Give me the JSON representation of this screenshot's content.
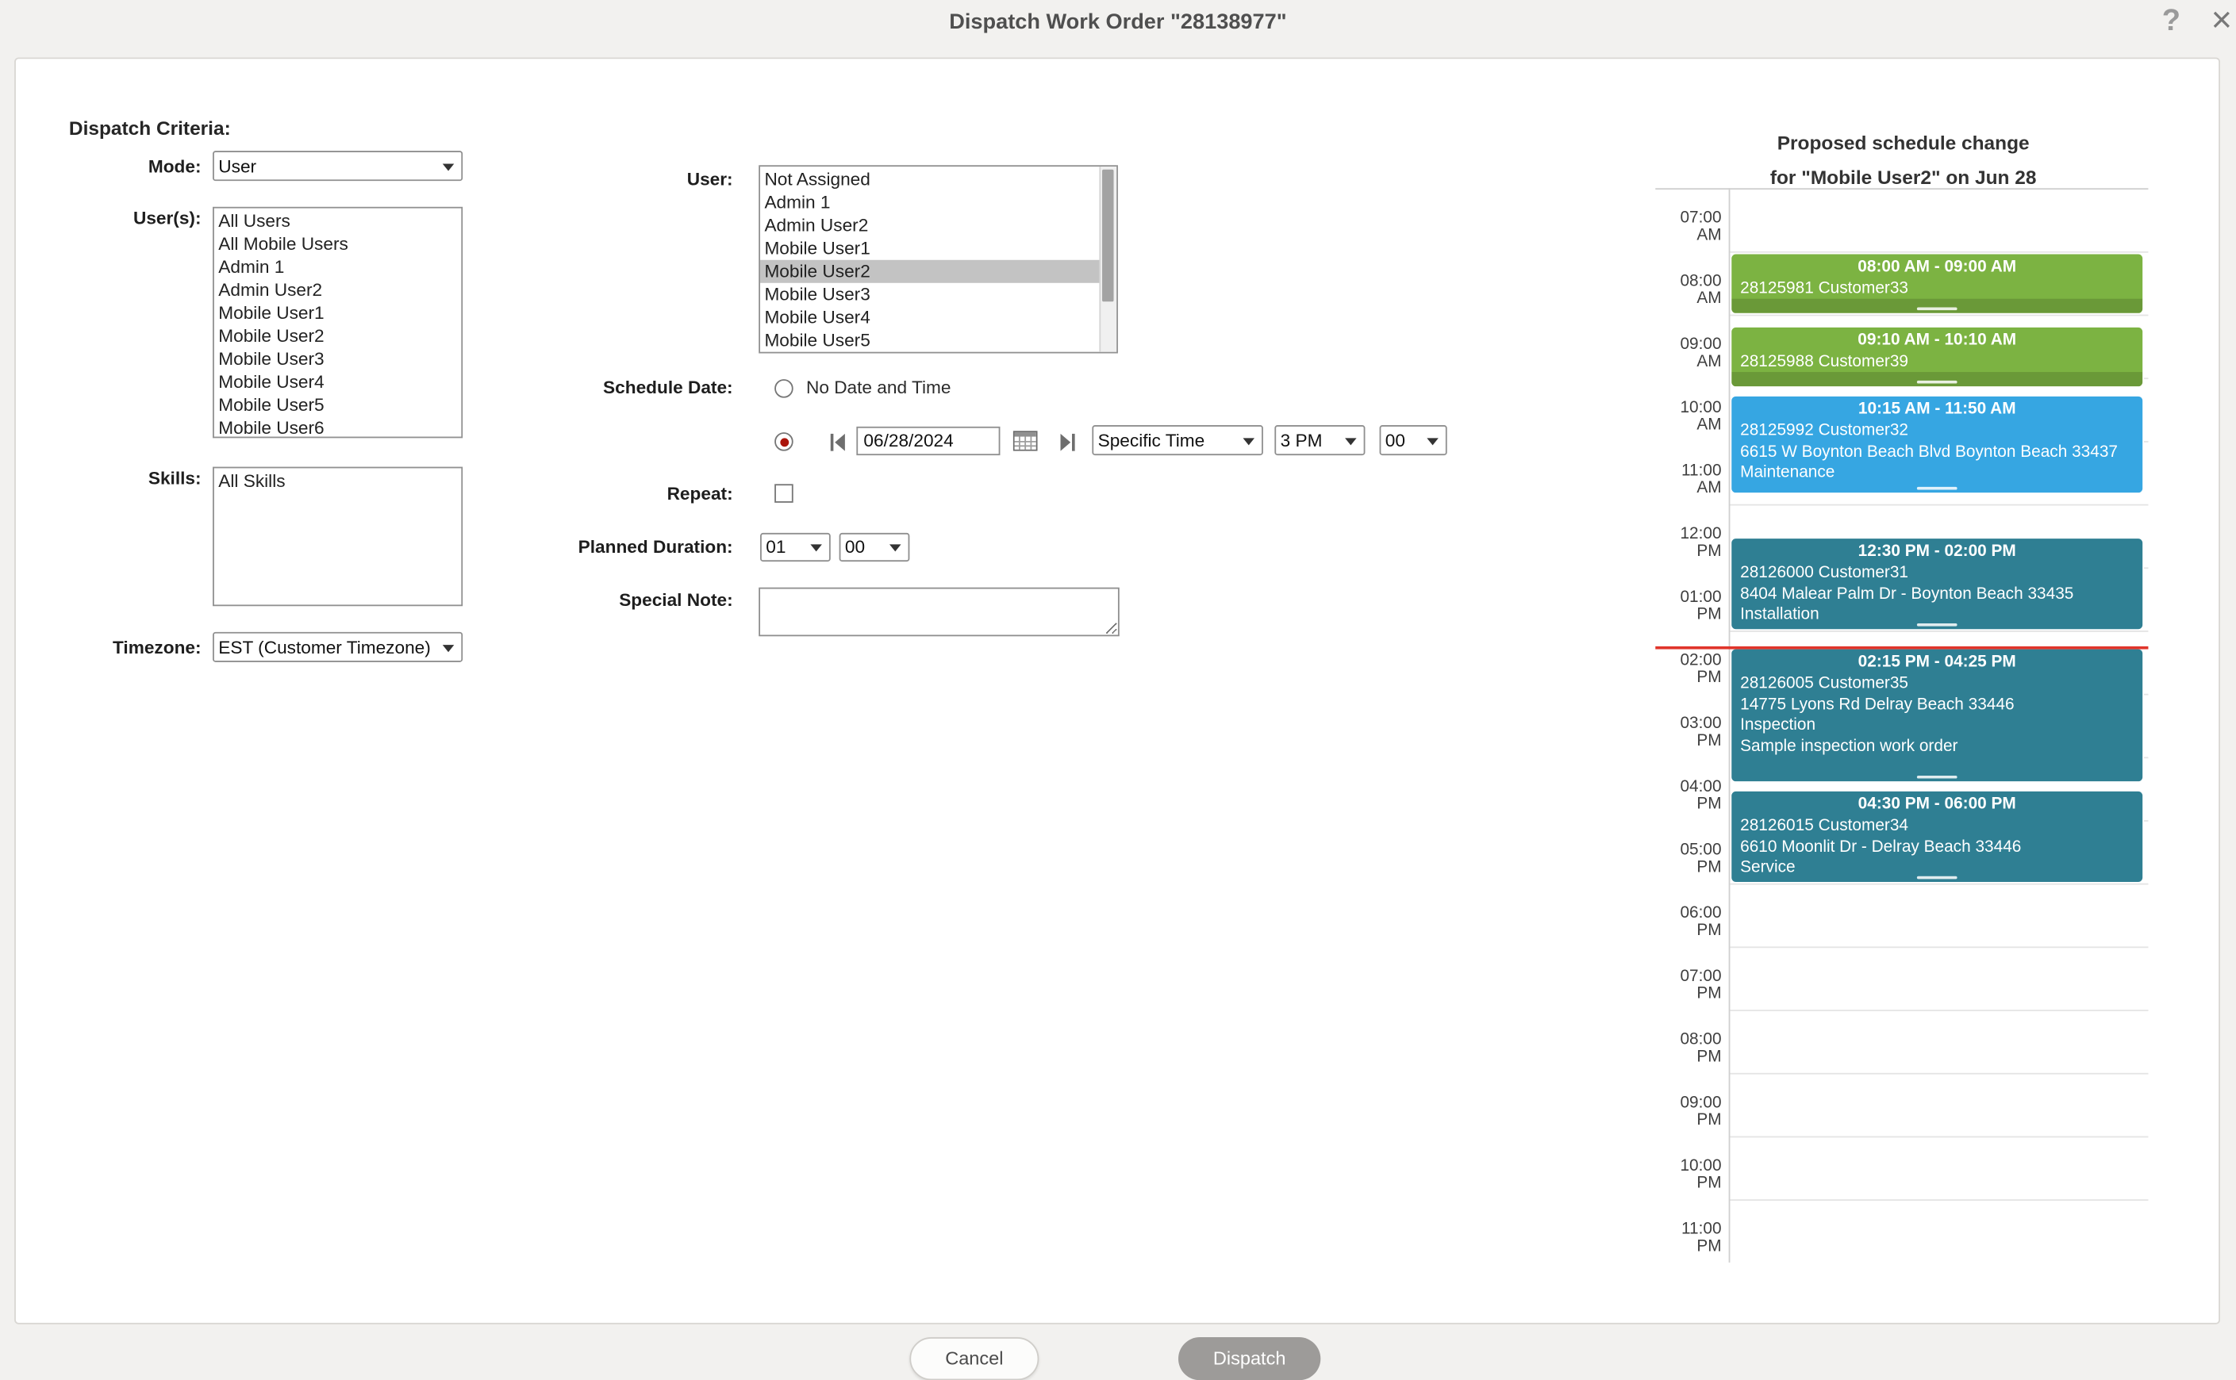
{
  "dialog": {
    "title": "Dispatch Work Order  \"28138977\"",
    "icons": {
      "help": "?",
      "close": "×"
    }
  },
  "criteria": {
    "heading": "Dispatch Criteria:",
    "mode": {
      "label": "Mode:",
      "value": "User"
    },
    "users": {
      "label": "User(s):",
      "items": [
        "All Users",
        "All Mobile Users",
        "Admin 1",
        "Admin User2",
        "Mobile User1",
        "Mobile User2",
        "Mobile User3",
        "Mobile User4",
        "Mobile User5",
        "Mobile User6"
      ]
    },
    "skills": {
      "label": "Skills:",
      "items": [
        "All Skills"
      ]
    },
    "timezone": {
      "label": "Timezone:",
      "value": "EST (Customer Timezone)"
    }
  },
  "assignment": {
    "user_label": "User:",
    "user_options": [
      "Not Assigned",
      "Admin 1",
      "Admin User2",
      "Mobile User1",
      "Mobile User2",
      "Mobile User3",
      "Mobile User4",
      "Mobile User5"
    ],
    "selected_user": "Mobile User2",
    "schedule_date": {
      "label": "Schedule Date:",
      "no_date_label": "No Date and Time",
      "date_value": "06/28/2024",
      "time_mode": "Specific Time",
      "hour": "3 PM",
      "minute": "00"
    },
    "repeat_label": "Repeat:",
    "planned_duration": {
      "label": "Planned Duration:",
      "hours": "01",
      "minutes": "00"
    },
    "special_note_label": "Special Note:"
  },
  "schedule": {
    "heading_line1": "Proposed schedule change",
    "heading_line2": "for \"Mobile User2\" on Jun 28",
    "time_labels": [
      "07:00 AM",
      "08:00 AM",
      "09:00 AM",
      "10:00 AM",
      "11:00 AM",
      "12:00 PM",
      "01:00 PM",
      "02:00 PM",
      "03:00 PM",
      "04:00 PM",
      "05:00 PM",
      "06:00 PM",
      "07:00 PM",
      "08:00 PM",
      "09:00 PM",
      "10:00 PM",
      "11:00 PM"
    ],
    "colors": {
      "green": "#7cb342",
      "blue": "#36a6e2",
      "teal": "#2f7f93",
      "current_line": "#e0352b"
    },
    "current_time": 14.25,
    "events": [
      {
        "time": "08:00 AM - 09:00 AM",
        "start": 8,
        "end": 9,
        "color": "green",
        "clipped": true,
        "lines": [
          "28125981 Customer33"
        ]
      },
      {
        "time": "09:10 AM - 10:10 AM",
        "start": 9.1667,
        "end": 10.1667,
        "color": "green",
        "clipped": true,
        "lines": [
          "28125988 Customer39"
        ]
      },
      {
        "time": "10:15 AM - 11:50 AM",
        "start": 10.25,
        "end": 11.8333,
        "color": "blue",
        "lines": [
          "28125992 Customer32",
          "6615 W Boynton Beach Blvd Boynton Beach 33437",
          "Maintenance"
        ]
      },
      {
        "time": "12:30 PM - 02:00 PM",
        "start": 12.5,
        "end": 14,
        "color": "teal",
        "lines": [
          "28126000 Customer31",
          "8404 Malear Palm Dr - Boynton Beach 33435",
          "Installation"
        ]
      },
      {
        "time": "02:15 PM - 04:25 PM",
        "start": 14.25,
        "end": 16.4167,
        "color": "teal",
        "lines": [
          "28126005 Customer35",
          "14775 Lyons Rd Delray Beach 33446",
          "Inspection",
          "Sample inspection work order"
        ]
      },
      {
        "time": "04:30 PM - 06:00 PM",
        "start": 16.5,
        "end": 18,
        "color": "teal",
        "lines": [
          "28126015 Customer34",
          "6610 Moonlit Dr - Delray Beach 33446",
          "Service"
        ]
      }
    ]
  },
  "footer": {
    "cancel_label": "Cancel",
    "dispatch_label": "Dispatch"
  }
}
